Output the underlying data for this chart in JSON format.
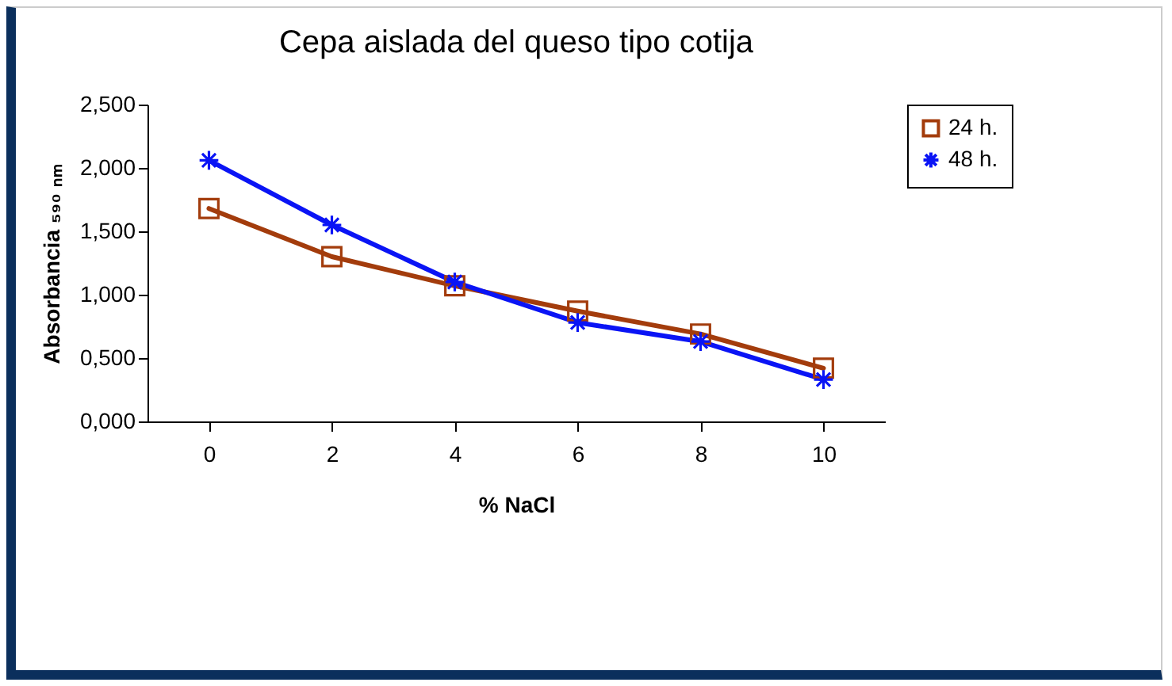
{
  "chart_data": {
    "type": "line",
    "title": "Cepa aislada del queso tipo cotija",
    "xlabel": "% NaCl",
    "ylabel": "Absorbancia ₅₉₀ ₙₘ",
    "categories": [
      "0",
      "2",
      "4",
      "6",
      "8",
      "10"
    ],
    "series": [
      {
        "name": "24 h.",
        "color": "#a33c0c",
        "marker": "square",
        "values": [
          1.68,
          1.3,
          1.07,
          0.87,
          0.69,
          0.42
        ]
      },
      {
        "name": "48 h.",
        "color": "#0a14f5",
        "marker": "cross",
        "values": [
          2.06,
          1.55,
          1.1,
          0.78,
          0.63,
          0.33
        ]
      }
    ],
    "ylim": [
      0,
      2.5
    ],
    "yticks": [
      {
        "value": 0,
        "label": "0,000"
      },
      {
        "value": 0.5,
        "label": "0,500"
      },
      {
        "value": 1,
        "label": "1,000"
      },
      {
        "value": 1.5,
        "label": "1,500"
      },
      {
        "value": 2,
        "label": "2,000"
      },
      {
        "value": 2.5,
        "label": "2,500"
      }
    ],
    "grid": false,
    "legend": "right"
  }
}
